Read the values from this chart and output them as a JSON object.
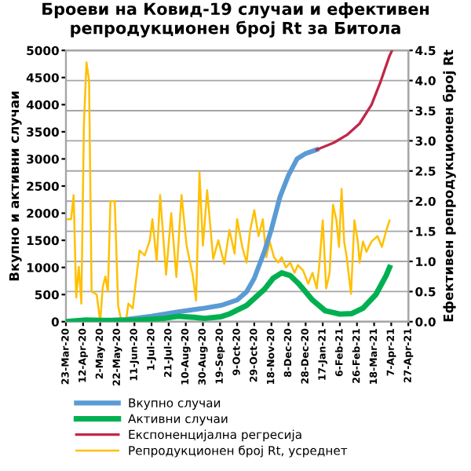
{
  "chart_data": {
    "type": "line",
    "title": "Броеви на Ковид-19 случаи и ефективен\nрепродукционен број Rt за Битола",
    "ylabel": "Вкупно и активни случаи",
    "y2label": "Ефективен репродукционен број Rt",
    "xlim": [
      "2020-03-23",
      "2021-04-27"
    ],
    "xticks": [
      {
        "value": "2020-03-23",
        "label": "23-Mar-20"
      },
      {
        "value": "2020-04-12",
        "label": "12-Apr-20"
      },
      {
        "value": "2020-05-02",
        "label": "2-May-20"
      },
      {
        "value": "2020-05-22",
        "label": "22-May-20"
      },
      {
        "value": "2020-06-11",
        "label": "11-Jun-20"
      },
      {
        "value": "2020-07-01",
        "label": "1-Jul-20"
      },
      {
        "value": "2020-07-21",
        "label": "21-Jul-20"
      },
      {
        "value": "2020-08-10",
        "label": "10-Aug-20"
      },
      {
        "value": "2020-08-30",
        "label": "30-Aug-20"
      },
      {
        "value": "2020-09-19",
        "label": "19-Sep-20"
      },
      {
        "value": "2020-10-09",
        "label": "9-Oct-20"
      },
      {
        "value": "2020-10-29",
        "label": "29-Oct-20"
      },
      {
        "value": "2020-11-18",
        "label": "18-Nov-20"
      },
      {
        "value": "2020-12-08",
        "label": "8-Dec-20"
      },
      {
        "value": "2020-12-28",
        "label": "28-Dec-20"
      },
      {
        "value": "2021-01-17",
        "label": "17-Jan-21"
      },
      {
        "value": "2021-02-06",
        "label": "6-Feb-21"
      },
      {
        "value": "2021-02-26",
        "label": "26-Feb-21"
      },
      {
        "value": "2021-03-18",
        "label": "18-Mar-21"
      },
      {
        "value": "2021-04-07",
        "label": "7-Apr-21"
      },
      {
        "value": "2021-04-27",
        "label": "27-Apr-21"
      }
    ],
    "ylim": [
      0,
      5000
    ],
    "yticks": [
      0,
      500,
      1000,
      1500,
      2000,
      2500,
      3000,
      3500,
      4000,
      4500,
      5000
    ],
    "y2lim": [
      0,
      4.5
    ],
    "y2ticks": [
      {
        "value": 0,
        "label": "0.0"
      },
      {
        "value": 0.5,
        "label": "0.5"
      },
      {
        "value": 1,
        "label": "1.0"
      },
      {
        "value": 1.5,
        "label": "1.5"
      },
      {
        "value": 2,
        "label": "2.0"
      },
      {
        "value": 2.5,
        "label": "2.5"
      },
      {
        "value": 3,
        "label": "3.0"
      },
      {
        "value": 3.5,
        "label": "3.5"
      },
      {
        "value": 4,
        "label": "4.0"
      },
      {
        "value": 4.5,
        "label": "4.5"
      }
    ],
    "grid": "y",
    "legend": "bottom",
    "marker": "none",
    "line_style": "solid",
    "series": [
      {
        "name": "Вкупно случаи",
        "color": "#5b9bd5",
        "x": [
          "2020-03-23",
          "2020-05-01",
          "2020-06-01",
          "2020-07-01",
          "2020-08-01",
          "2020-09-01",
          "2020-09-20",
          "2020-10-09",
          "2020-10-20",
          "2020-10-29",
          "2020-11-10",
          "2020-11-18",
          "2020-11-28",
          "2020-12-08",
          "2020-12-18",
          "2020-12-28",
          "2021-01-10"
        ],
        "values": [
          0,
          20,
          40,
          100,
          180,
          250,
          300,
          400,
          550,
          800,
          1300,
          1700,
          2300,
          2700,
          3000,
          3100,
          3170
        ]
      },
      {
        "name": "Активни случаи",
        "color": "#00b050",
        "x": [
          "2020-03-23",
          "2020-04-15",
          "2020-05-15",
          "2020-06-15",
          "2020-07-15",
          "2020-08-01",
          "2020-08-20",
          "2020-09-01",
          "2020-09-20",
          "2020-10-01",
          "2020-10-20",
          "2020-11-10",
          "2020-11-20",
          "2020-11-30",
          "2020-12-10",
          "2020-12-20",
          "2021-01-05",
          "2021-01-20",
          "2021-02-06",
          "2021-02-20",
          "2021-03-05",
          "2021-03-20",
          "2021-04-01",
          "2021-04-05"
        ],
        "values": [
          0,
          30,
          20,
          30,
          60,
          100,
          80,
          60,
          90,
          150,
          300,
          600,
          800,
          900,
          850,
          700,
          400,
          200,
          140,
          150,
          250,
          500,
          850,
          1000
        ]
      },
      {
        "name": "Експоненцијална регресија",
        "color": "#c0284a",
        "x": [
          "2021-01-10",
          "2021-01-30",
          "2021-02-15",
          "2021-03-01",
          "2021-03-15",
          "2021-03-25",
          "2021-04-05",
          "2021-04-08"
        ],
        "values": [
          3170,
          3300,
          3450,
          3650,
          4000,
          4400,
          4900,
          5000
        ]
      },
      {
        "name": "Репродукционен број Rt, усреднет",
        "color": "#ffc000",
        "axis": "y2",
        "x": [
          "2020-03-24",
          "2020-03-29",
          "2020-04-01",
          "2020-04-04",
          "2020-04-07",
          "2020-04-10",
          "2020-04-13",
          "2020-04-16",
          "2020-04-19",
          "2020-04-22",
          "2020-04-28",
          "2020-05-02",
          "2020-05-05",
          "2020-05-08",
          "2020-05-11",
          "2020-05-14",
          "2020-05-19",
          "2020-05-23",
          "2020-05-27",
          "2020-06-01",
          "2020-06-04",
          "2020-06-09",
          "2020-06-17",
          "2020-06-23",
          "2020-06-29",
          "2020-07-02",
          "2020-07-07",
          "2020-07-11",
          "2020-07-18",
          "2020-07-24",
          "2020-07-30",
          "2020-08-05",
          "2020-08-11",
          "2020-08-18",
          "2020-08-22",
          "2020-08-26",
          "2020-08-30",
          "2020-09-04",
          "2020-09-11",
          "2020-09-17",
          "2020-09-24",
          "2020-09-30",
          "2020-10-06",
          "2020-10-09",
          "2020-10-15",
          "2020-10-20",
          "2020-10-24",
          "2020-10-29",
          "2020-11-03",
          "2020-11-08",
          "2020-11-12",
          "2020-11-16",
          "2020-11-21",
          "2020-11-26",
          "2020-11-30",
          "2020-12-05",
          "2020-12-10",
          "2020-12-15",
          "2020-12-19",
          "2020-12-25",
          "2020-12-31",
          "2021-01-05",
          "2021-01-10",
          "2021-01-13",
          "2021-01-17",
          "2021-01-21",
          "2021-01-25",
          "2021-01-29",
          "2021-02-02",
          "2021-02-05",
          "2021-02-08",
          "2021-02-11",
          "2021-02-14",
          "2021-02-19",
          "2021-02-23",
          "2021-02-27",
          "2021-03-01",
          "2021-03-05",
          "2021-03-09",
          "2021-03-15",
          "2021-03-22",
          "2021-03-27",
          "2021-04-01",
          "2021-04-05"
        ],
        "values": [
          1.7,
          1.7,
          2.1,
          0.4,
          0.91,
          0.3,
          3.27,
          4.3,
          4.0,
          0.5,
          0.45,
          0,
          0.57,
          0.75,
          0.5,
          2.0,
          2.0,
          0.26,
          0,
          0,
          0.3,
          0.22,
          1.18,
          1.1,
          1.35,
          1.7,
          1.0,
          2.1,
          0.78,
          1.8,
          0.74,
          2.1,
          1.26,
          0.78,
          0.35,
          2.48,
          1.26,
          2.18,
          1.04,
          1.35,
          0.96,
          1.52,
          1.13,
          1.7,
          1.24,
          0.98,
          1.5,
          1.85,
          1.42,
          1.7,
          1.07,
          1.33,
          1.07,
          0.98,
          1.07,
          0.9,
          0.98,
          0.81,
          0.94,
          0.85,
          0.63,
          0.81,
          0.55,
          0.94,
          1.68,
          0.55,
          0.81,
          1.94,
          1.68,
          1.24,
          2.2,
          1.33,
          1.07,
          0.46,
          1.68,
          1.33,
          0.98,
          1.33,
          1.16,
          1.33,
          1.42,
          1.24,
          1.5,
          1.68
        ]
      }
    ]
  }
}
